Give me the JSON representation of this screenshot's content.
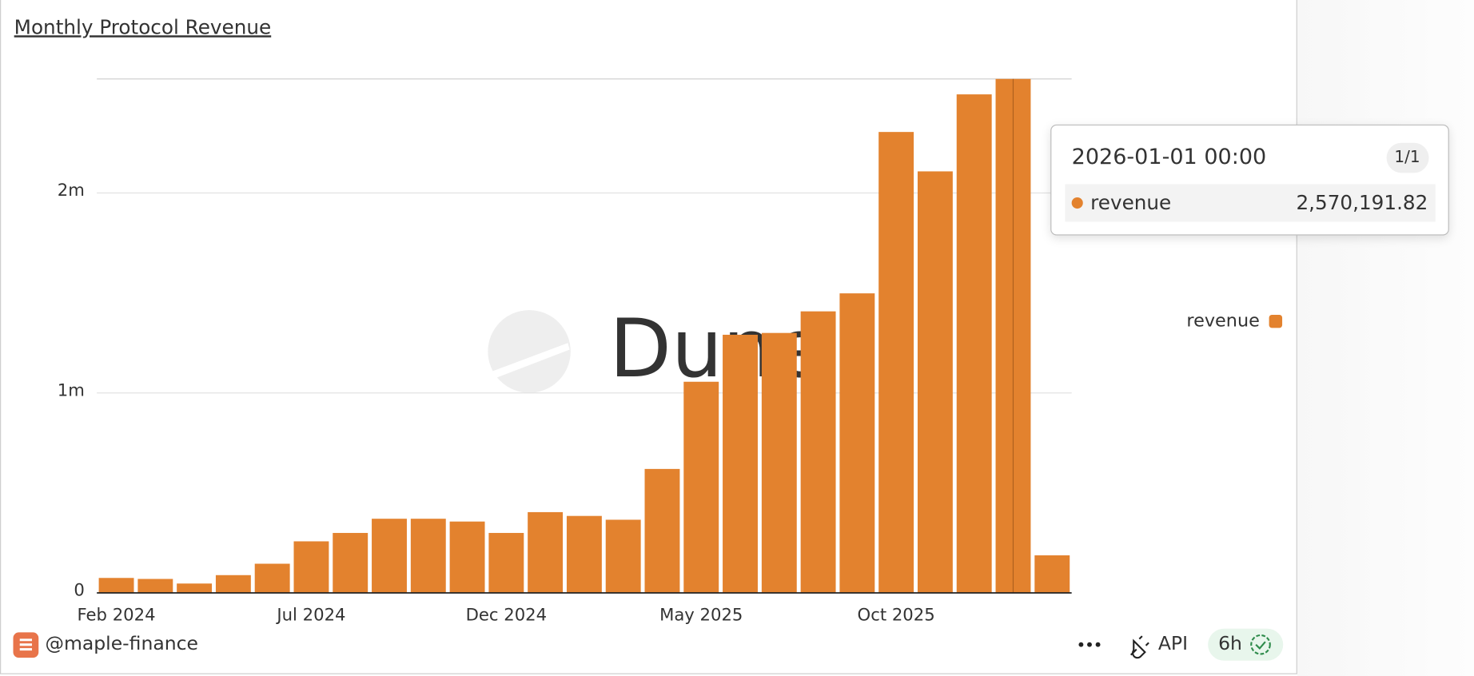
{
  "chart_data": {
    "type": "bar",
    "title": "Monthly Protocol Revenue",
    "categories": [
      "Feb 2024",
      null,
      null,
      null,
      null,
      "Jul 2024",
      null,
      null,
      null,
      null,
      "Dec 2024",
      null,
      null,
      null,
      null,
      "May 2025",
      null,
      null,
      null,
      null,
      "Oct 2025",
      null,
      null,
      null,
      null
    ],
    "series": [
      {
        "name": "revenue",
        "color": "#e3822e",
        "values": [
          75000,
          70000,
          47000,
          89000,
          146000,
          258000,
          300000,
          371000,
          371000,
          357000,
          300000,
          404000,
          385000,
          366000,
          620000,
          1056000,
          1291000,
          1300000,
          1408000,
          1498000,
          2305000,
          2108000,
          2493000,
          2570191.82,
          188000
        ]
      }
    ],
    "ylim": [
      0,
      2570191.82
    ],
    "yticks": [
      0,
      {
        "value": 1000000,
        "label": "1m"
      },
      {
        "value": 2000000,
        "label": "2m"
      }
    ],
    "grid": true,
    "legend": "right",
    "watermark": "Dune",
    "tooltip": {
      "x": "2026-01-01 00:00",
      "page": "1/1",
      "series": "revenue",
      "value_label": "2,570,191.82",
      "index": 23
    }
  },
  "footer": {
    "owner": "@maple-finance",
    "api": "API",
    "refresh": "6h"
  }
}
